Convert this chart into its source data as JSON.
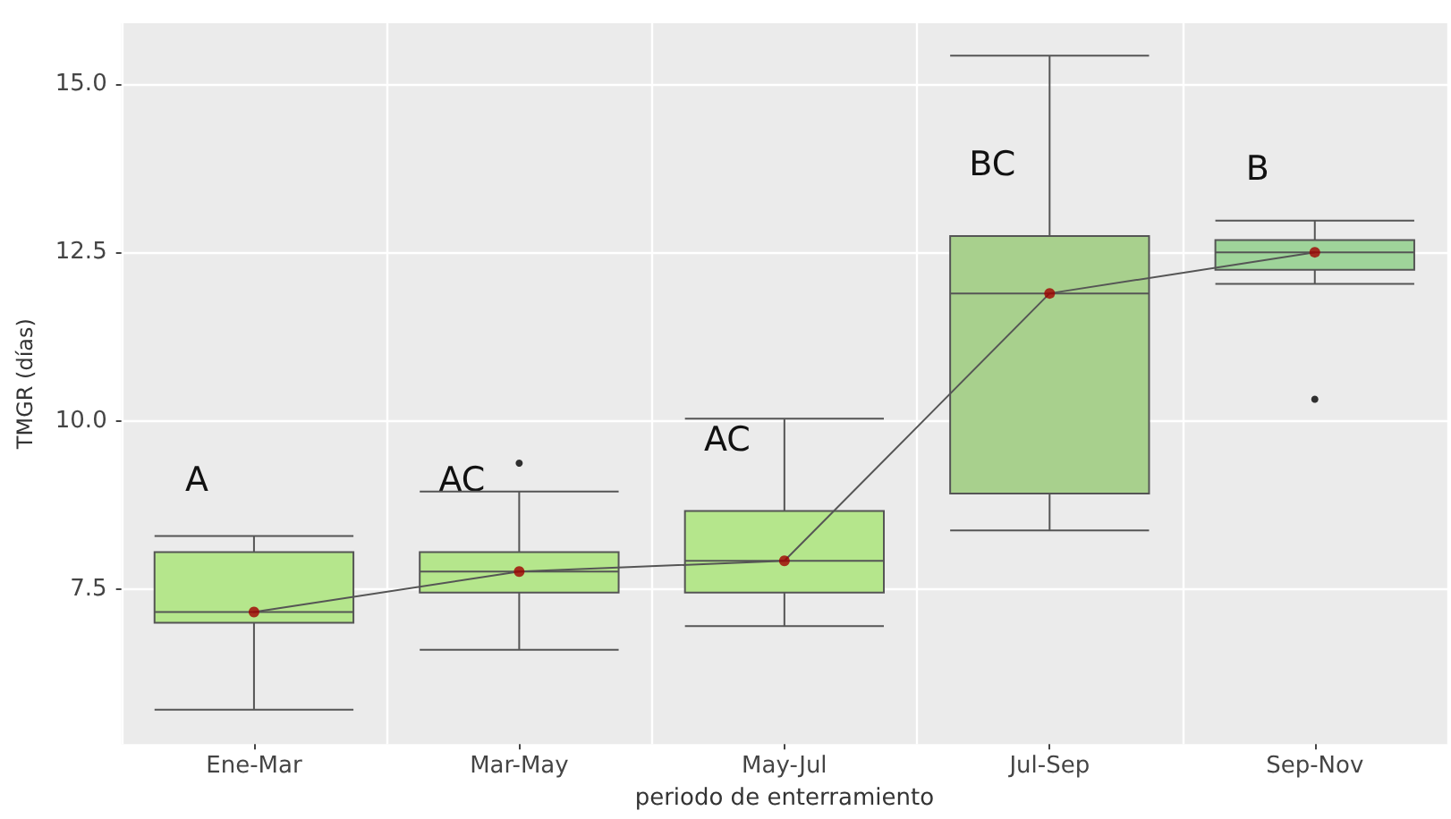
{
  "chart_data": {
    "type": "box",
    "xlabel": "periodo de enterramiento",
    "ylabel": "TMGR (días)",
    "categories": [
      "Ene-Mar",
      "Mar-May",
      "May-Jul",
      "Jul-Sep",
      "Sep-Nov"
    ],
    "ylim": [
      5.2,
      15.9
    ],
    "yticks": [
      {
        "value": 7.5,
        "label": "7.5"
      },
      {
        "value": 10,
        "label": "10.0"
      },
      {
        "value": 12.5,
        "label": "12.5"
      },
      {
        "value": 15,
        "label": "15.0"
      }
    ],
    "grid": true,
    "series": [
      {
        "colors": [
          "#b5e68c",
          "#b5e68c",
          "#b5e68c",
          "#a8d08d",
          "#9fd49a"
        ],
        "boxes": [
          {
            "low": 5.71,
            "q1": 7.0,
            "median": 7.16,
            "q3": 8.05,
            "high": 8.29,
            "mean": 7.16
          },
          {
            "low": 6.6,
            "q1": 7.45,
            "median": 7.76,
            "q3": 8.05,
            "high": 8.95,
            "mean": 7.76,
            "outliers": [
              9.37
            ]
          },
          {
            "low": 6.95,
            "q1": 7.45,
            "median": 7.92,
            "q3": 8.66,
            "high": 10.03,
            "mean": 7.92
          },
          {
            "low": 8.37,
            "q1": 8.92,
            "median": 11.89,
            "q3": 12.74,
            "high": 15.42,
            "mean": 11.89
          },
          {
            "low": 12.03,
            "q1": 12.24,
            "median": 12.5,
            "q3": 12.68,
            "high": 12.97,
            "mean": 12.5,
            "outliers": [
              10.32
            ]
          }
        ]
      },
      {
        "type": "line",
        "color": "#555555",
        "marker": "none",
        "values": [
          7.16,
          7.76,
          7.92,
          11.89,
          12.5
        ]
      }
    ],
    "annotations": [
      "A",
      "AC",
      "AC",
      "BC",
      "B"
    ]
  }
}
